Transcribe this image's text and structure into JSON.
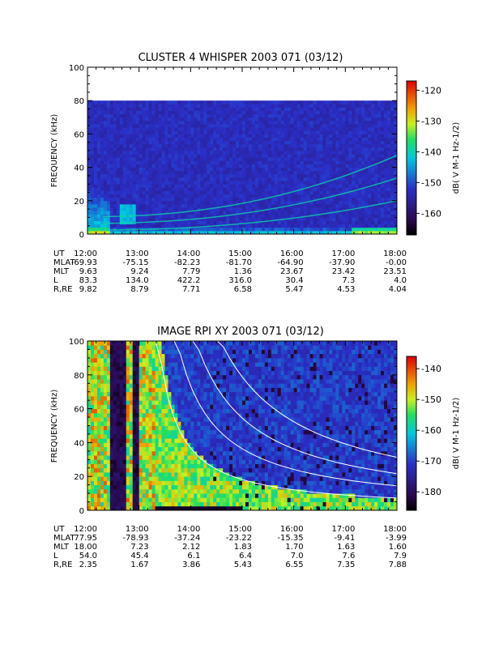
{
  "chart_data": [
    {
      "type": "heatmap",
      "title": "CLUSTER 4 WHISPER 2003 071 (03/12)",
      "ylabel": "FREQUENCY (kHz)",
      "ylim": [
        0,
        100
      ],
      "y_ticks": [
        "0",
        "20",
        "40",
        "60",
        "80",
        "100"
      ],
      "data_ylim": [
        0,
        80
      ],
      "x_ticks": [
        "12:00",
        "13:00",
        "14:00",
        "15:00",
        "16:00",
        "17:00",
        "18:00"
      ],
      "colorbar": {
        "label": "dB( V M⁻¹ Hz⁻¹ᐟ²)",
        "label_plain": "dB( V M-1 Hz-1/2)",
        "range": [
          -167,
          -117
        ],
        "ticks": [
          "-120",
          "-130",
          "-140",
          "-150",
          "-160"
        ]
      },
      "ephemeris": {
        "labels": [
          "UT",
          "MLAT",
          "MLT",
          "L",
          "R,RE"
        ],
        "rows": [
          [
            "12:00",
            "13:00",
            "14:00",
            "15:00",
            "16:00",
            "17:00",
            "18:00"
          ],
          [
            "-69.93",
            "-75.15",
            "-82.23",
            "-81.70",
            "-64.90",
            "-37.90",
            "-0.00"
          ],
          [
            "9.63",
            "9.24",
            "7.79",
            "1.36",
            "23.67",
            "23.42",
            "23.51"
          ],
          [
            "83.3",
            "134.0",
            "422.2",
            "316.0",
            "30.4",
            "7.3",
            "4.0"
          ],
          [
            "9.82",
            "8.79",
            "7.71",
            "6.58",
            "5.47",
            "4.53",
            "4.04"
          ]
        ]
      }
    },
    {
      "type": "heatmap",
      "title": "IMAGE RPI XY 2003 071 (03/12)",
      "ylabel": "FREQUENCY (kHz)",
      "ylim": [
        0,
        100
      ],
      "y_ticks": [
        "0",
        "20",
        "40",
        "60",
        "80",
        "100"
      ],
      "x_ticks": [
        "12:00",
        "13:00",
        "14:00",
        "15:00",
        "16:00",
        "17:00",
        "18:00"
      ],
      "colorbar": {
        "label": "dB( V M⁻¹ Hz⁻¹ᐟ²)",
        "label_plain": "dB( V M-1 Hz-1/2)",
        "range": [
          -186,
          -136
        ],
        "ticks": [
          "-140",
          "-150",
          "-160",
          "-170",
          "-180"
        ]
      },
      "ephemeris": {
        "labels": [
          "UT",
          "MLAT",
          "MLT",
          "L",
          "R,RE"
        ],
        "rows": [
          [
            "12:00",
            "13:00",
            "14:00",
            "15:00",
            "16:00",
            "17:00",
            "18:00"
          ],
          [
            "77.95",
            "-78.93",
            "-37.24",
            "-23.22",
            "-15.35",
            "-9.41",
            "-3.99"
          ],
          [
            "18.00",
            "7.23",
            "2.12",
            "1.83",
            "1.70",
            "1.63",
            "1.60"
          ],
          [
            "54.0",
            "45.4",
            "6.1",
            "6.4",
            "7.0",
            "7.6",
            "7.9"
          ],
          [
            "2.35",
            "1.67",
            "3.86",
            "5.43",
            "6.55",
            "7.35",
            "7.88"
          ]
        ]
      }
    }
  ]
}
